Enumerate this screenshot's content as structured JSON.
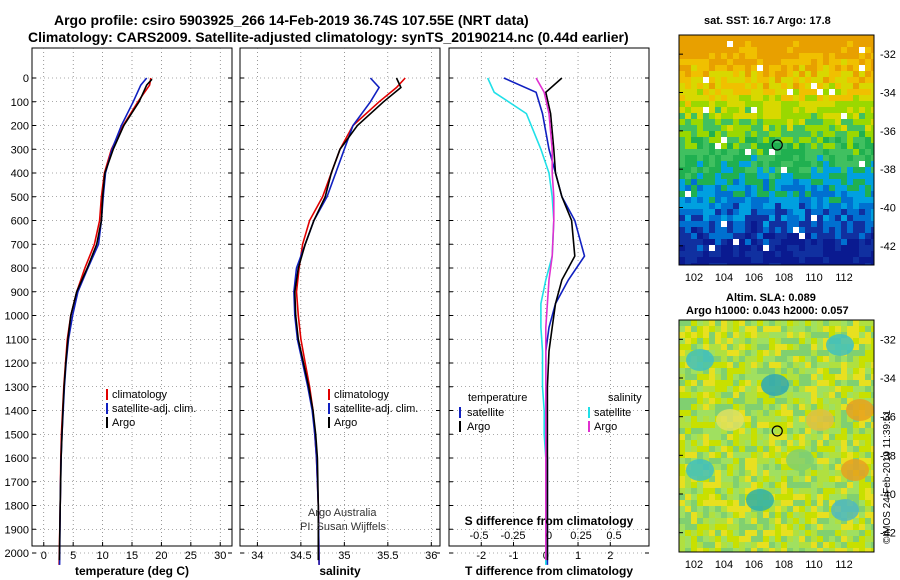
{
  "header": {
    "line1": "Argo profile: csiro 5903925_266 14-Feb-2019 36.74S 107.55E (NRT data)",
    "line2": "Climatology: CARS2009. Satellite-adjusted climatology: synTS_20190214.nc (0.44d earlier)"
  },
  "maps": {
    "sst_title": "sat. SST: 16.7 Argo: 17.8",
    "sla_title1": "Altim. SLA: 0.089",
    "sla_title2": "Argo h1000: 0.043 h2000: 0.057",
    "lat_ticks": [
      "-32",
      "-34",
      "-36",
      "-38",
      "-40",
      "-42"
    ],
    "lon_ticks": [
      "102",
      "104",
      "106",
      "108",
      "110",
      "112"
    ],
    "stamp": "©IMOS 24-Feb-2019 11:39:51"
  },
  "credits": {
    "line1": "Argo Australia",
    "line2": "PI: Susan Wijffels"
  },
  "colors": {
    "climatology": "#e00000",
    "satellite": "#1020c0",
    "argo": "#000000",
    "s_satellite": "#20e0e8",
    "s_argo": "#e030d0"
  },
  "chart_data": [
    {
      "type": "line",
      "xlabel": "temperature (deg C)",
      "ylabel": "",
      "xlim": [
        -2,
        32
      ],
      "ylim": [
        2050,
        0
      ],
      "xticks": [
        "0",
        "5",
        "10",
        "15",
        "20",
        "25",
        "30"
      ],
      "yticks": [
        "0",
        "100",
        "200",
        "300",
        "400",
        "500",
        "600",
        "700",
        "800",
        "900",
        "1000",
        "1100",
        "1200",
        "1300",
        "1400",
        "1500",
        "1600",
        "1700",
        "1800",
        "1900",
        "2000"
      ],
      "legend": [
        "climatology",
        "satellite-adj. clim.",
        "Argo"
      ],
      "legend_position": "lower-right",
      "series": [
        {
          "name": "climatology",
          "x": [
            18.2,
            18.0,
            16.0,
            13.5,
            11.5,
            10.3,
            9.8,
            9.5,
            8.6,
            7.0,
            5.6,
            4.6,
            4.0,
            3.7,
            3.4,
            3.2,
            3.0,
            2.9,
            2.8,
            2.6
          ],
          "y": [
            0,
            30,
            100,
            200,
            300,
            400,
            500,
            600,
            700,
            800,
            900,
            1000,
            1100,
            1200,
            1300,
            1400,
            1500,
            1600,
            1800,
            2050
          ]
        },
        {
          "name": "satellite-adj. clim.",
          "x": [
            17.5,
            16.5,
            15.2,
            13.2,
            11.6,
            10.5,
            10.1,
            9.8,
            9.3,
            7.5,
            5.8,
            4.9,
            4.2,
            3.8,
            3.5,
            3.3,
            3.1,
            2.95,
            2.8,
            2.7
          ],
          "y": [
            0,
            30,
            100,
            200,
            300,
            400,
            500,
            600,
            700,
            800,
            900,
            1000,
            1100,
            1200,
            1300,
            1400,
            1500,
            1600,
            1800,
            2050
          ]
        },
        {
          "name": "Argo",
          "x": [
            18.4,
            17.5,
            16.2,
            13.6,
            11.8,
            10.4,
            10.0,
            9.8,
            9.0,
            7.4,
            5.6,
            4.6,
            4.1,
            3.75,
            3.45,
            3.25,
            3.1,
            2.95,
            2.8,
            2.65
          ],
          "y": [
            5,
            30,
            100,
            200,
            300,
            400,
            500,
            600,
            700,
            800,
            900,
            1000,
            1100,
            1200,
            1300,
            1400,
            1500,
            1600,
            1800,
            2030
          ]
        }
      ]
    },
    {
      "type": "line",
      "xlabel": "salinity",
      "ylabel": "",
      "xlim": [
        33.8,
        36.1
      ],
      "ylim": [
        2050,
        0
      ],
      "xticks": [
        "34",
        "34.5",
        "35",
        "35.5",
        "36"
      ],
      "legend": [
        "climatology",
        "satellite-adj. clim.",
        "Argo"
      ],
      "legend_position": "lower-right",
      "series": [
        {
          "name": "climatology",
          "x": [
            35.7,
            35.6,
            35.4,
            35.1,
            34.95,
            34.85,
            34.75,
            34.6,
            34.52,
            34.48,
            34.45,
            34.47,
            34.5,
            34.55,
            34.6,
            34.64,
            34.66,
            34.68,
            34.7,
            34.71
          ],
          "y": [
            0,
            40,
            100,
            200,
            300,
            400,
            500,
            600,
            700,
            800,
            900,
            1000,
            1100,
            1200,
            1300,
            1400,
            1500,
            1600,
            1800,
            2050
          ]
        },
        {
          "name": "satellite-adj. clim.",
          "x": [
            35.3,
            35.4,
            35.3,
            35.1,
            35.0,
            34.9,
            34.8,
            34.65,
            34.55,
            34.45,
            34.42,
            34.43,
            34.46,
            34.52,
            34.58,
            34.63,
            34.66,
            34.68,
            34.7,
            34.71
          ],
          "y": [
            0,
            40,
            100,
            200,
            300,
            400,
            500,
            600,
            700,
            800,
            900,
            1000,
            1100,
            1200,
            1300,
            1400,
            1500,
            1600,
            1800,
            2050
          ]
        },
        {
          "name": "Argo",
          "x": [
            35.6,
            35.65,
            35.45,
            35.15,
            34.95,
            34.85,
            34.78,
            34.65,
            34.55,
            34.47,
            34.43,
            34.44,
            34.47,
            34.53,
            34.59,
            34.64,
            34.67,
            34.69,
            34.7,
            34.7
          ],
          "y": [
            0,
            40,
            100,
            200,
            300,
            400,
            500,
            600,
            700,
            800,
            900,
            1000,
            1100,
            1200,
            1300,
            1400,
            1500,
            1600,
            1800,
            2030
          ]
        }
      ]
    },
    {
      "type": "line",
      "xlabel": "T difference from climatology",
      "xlabel_top": "S difference from climatology",
      "xlim": [
        -3,
        3.2
      ],
      "ylim": [
        2050,
        0
      ],
      "xticks": [
        "-2",
        "-1",
        "0",
        "1",
        "2"
      ],
      "xticks_top": [
        "-0.5",
        "-0.25",
        "0",
        "0.25",
        "0.5"
      ],
      "legend_left_title": "temperature",
      "legend_right_title": "salinity",
      "legend_left": [
        "satellite",
        "Argo"
      ],
      "legend_right": [
        "satellite",
        "Argo"
      ],
      "series": [
        {
          "name": "temperature satellite",
          "x": [
            -1.3,
            -0.3,
            -0.1,
            0.1,
            0.3,
            0.5,
            0.9,
            1.2,
            0.7,
            0.3,
            0.1,
            0.0,
            0.0,
            0.0,
            0.0,
            0.05,
            0.05,
            0.05,
            0.05,
            0.05
          ],
          "y": [
            0,
            60,
            150,
            300,
            400,
            500,
            600,
            750,
            850,
            950,
            1050,
            1150,
            1300,
            1400,
            1500,
            1600,
            1700,
            1800,
            1900,
            2050
          ]
        },
        {
          "name": "temperature Argo",
          "x": [
            0.5,
            0.0,
            0.15,
            0.25,
            0.3,
            0.5,
            0.8,
            0.9,
            0.5,
            0.3,
            0.2,
            0.1,
            0.05,
            0.05,
            0.05,
            0.05,
            0.05,
            0.05,
            0.05,
            0.05
          ],
          "y": [
            0,
            60,
            150,
            300,
            400,
            500,
            600,
            750,
            850,
            950,
            1050,
            1150,
            1300,
            1400,
            1500,
            1600,
            1700,
            1800,
            1900,
            2030
          ]
        },
        {
          "name": "salinity satellite",
          "x": [
            -1.8,
            -1.6,
            -0.6,
            -0.15,
            0.1,
            0.2,
            0.25,
            0.2,
            0.0,
            -0.15,
            -0.15,
            -0.1,
            -0.1,
            -0.05,
            -0.05,
            0.0,
            0.0,
            0.0,
            0.0,
            0.0
          ],
          "y": [
            0,
            60,
            150,
            300,
            400,
            500,
            600,
            750,
            850,
            950,
            1050,
            1150,
            1300,
            1400,
            1500,
            1600,
            1700,
            1800,
            1900,
            2050
          ]
        },
        {
          "name": "salinity Argo",
          "x": [
            -0.3,
            -0.05,
            0.1,
            0.2,
            0.2,
            0.25,
            0.25,
            0.2,
            0.1,
            0.05,
            0.0,
            0.0,
            0.0,
            0.0,
            0.0,
            0.0,
            0.0,
            0.0,
            0.0,
            0.0
          ],
          "y": [
            0,
            60,
            150,
            300,
            400,
            500,
            600,
            750,
            850,
            950,
            1050,
            1150,
            1300,
            1400,
            1500,
            1600,
            1700,
            1800,
            1900,
            2030
          ]
        }
      ]
    }
  ]
}
